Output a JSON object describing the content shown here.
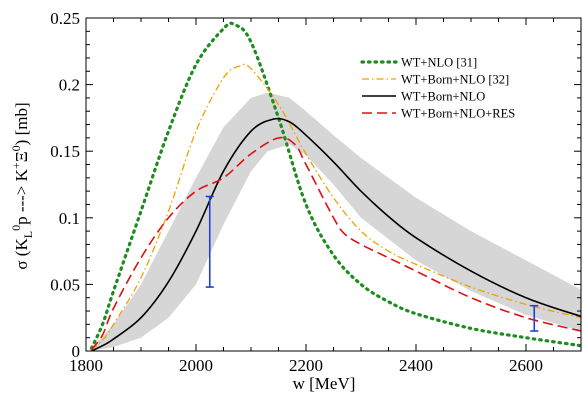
{
  "chart_data": {
    "type": "line",
    "xlabel": "w [MeV]",
    "ylabel": {
      "prefix": "σ (K",
      "sub1": "L",
      "sup1": "0",
      "mid": "p ---> K",
      "sup2": "+",
      "xi": "Ξ",
      "sup3": "0",
      "suffix": ") [mb]"
    },
    "xlim": [
      1800,
      2700
    ],
    "ylim": [
      0,
      0.25
    ],
    "xticks": [
      "1800",
      "2000",
      "2200",
      "2400",
      "2600"
    ],
    "yticks": [
      "0",
      "0.05",
      "0.1",
      "0.15",
      "0.2",
      "0.25"
    ],
    "legend_position": "top-right",
    "series": [
      {
        "name": "WT+NLO [31]",
        "color": "#1e8c1e",
        "dash": "dotted",
        "x": [
          1810,
          1830,
          1850,
          1900,
          1950,
          2000,
          2050,
          2070,
          2100,
          2150,
          2200,
          2250,
          2300,
          2350,
          2400,
          2500,
          2600,
          2700
        ],
        "y": [
          0.002,
          0.02,
          0.045,
          0.105,
          0.165,
          0.215,
          0.242,
          0.245,
          0.232,
          0.175,
          0.11,
          0.072,
          0.05,
          0.037,
          0.028,
          0.017,
          0.01,
          0.004
        ]
      },
      {
        "name": "WT+Born+NLO [32]",
        "color": "#f0a000",
        "dash": "dashdot",
        "x": [
          1810,
          1830,
          1850,
          1900,
          1950,
          2000,
          2050,
          2080,
          2100,
          2150,
          2200,
          2250,
          2300,
          2350,
          2400,
          2500,
          2600,
          2700
        ],
        "y": [
          0.001,
          0.008,
          0.02,
          0.055,
          0.105,
          0.165,
          0.205,
          0.214,
          0.212,
          0.185,
          0.148,
          0.115,
          0.09,
          0.075,
          0.065,
          0.048,
          0.035,
          0.025
        ]
      },
      {
        "name": "WT+Born+NLO",
        "color": "#000000",
        "dash": "solid",
        "x": [
          1810,
          1830,
          1850,
          1900,
          1950,
          2000,
          2050,
          2100,
          2140,
          2170,
          2200,
          2250,
          2300,
          2350,
          2400,
          2500,
          2600,
          2700
        ],
        "y": [
          0.0,
          0.004,
          0.009,
          0.025,
          0.052,
          0.09,
          0.135,
          0.165,
          0.174,
          0.172,
          0.162,
          0.142,
          0.12,
          0.101,
          0.085,
          0.06,
          0.04,
          0.026
        ]
      },
      {
        "name": "WT+Born+NLO+RES",
        "color": "#e01010",
        "dash": "dashed",
        "x": [
          1810,
          1830,
          1850,
          1900,
          1950,
          2000,
          2050,
          2100,
          2150,
          2180,
          2200,
          2250,
          2270,
          2300,
          2350,
          2400,
          2500,
          2600,
          2700
        ],
        "y": [
          0.001,
          0.012,
          0.032,
          0.07,
          0.1,
          0.12,
          0.13,
          0.148,
          0.16,
          0.155,
          0.14,
          0.1,
          0.088,
          0.08,
          0.07,
          0.06,
          0.04,
          0.025,
          0.015
        ]
      }
    ],
    "band": {
      "color": "#d6d6d6",
      "x": [
        1810,
        1850,
        1900,
        1950,
        2000,
        2050,
        2100,
        2130,
        2170,
        2200,
        2250,
        2300,
        2400,
        2500,
        2600,
        2700
      ],
      "upper": [
        0.002,
        0.02,
        0.05,
        0.09,
        0.13,
        0.168,
        0.19,
        0.194,
        0.19,
        0.18,
        0.162,
        0.145,
        0.115,
        0.09,
        0.068,
        0.046
      ],
      "lower": [
        0.0,
        0.003,
        0.01,
        0.025,
        0.05,
        0.095,
        0.135,
        0.15,
        0.155,
        0.147,
        0.125,
        0.1,
        0.068,
        0.045,
        0.027,
        0.015
      ]
    },
    "error_bars": [
      {
        "x": 2025,
        "y_low": 0.048,
        "y_high": 0.116,
        "color": "#1f3fd6"
      },
      {
        "x": 2615,
        "y_low": 0.015,
        "y_high": 0.034,
        "color": "#1f3fd6"
      }
    ]
  }
}
